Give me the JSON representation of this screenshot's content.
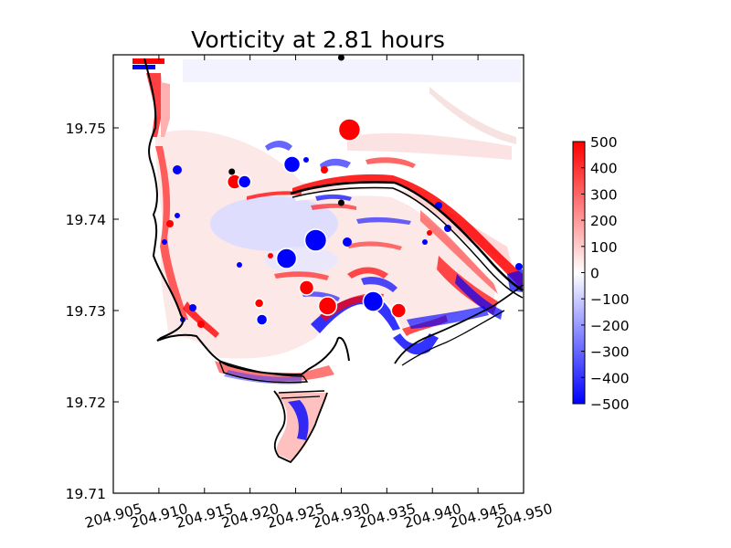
{
  "chart_data": {
    "type": "heatmap",
    "title": "Vorticity at 2.81 hours",
    "xlabel": "",
    "ylabel": "",
    "xlim": [
      204.905,
      204.95
    ],
    "ylim": [
      19.71,
      19.758
    ],
    "x_ticks": [
      "204.905",
      "204.910",
      "204.915",
      "204.920",
      "204.925",
      "204.930",
      "204.935",
      "204.940",
      "204.945",
      "204.950"
    ],
    "x_tick_values": [
      204.905,
      204.91,
      204.915,
      204.92,
      204.925,
      204.93,
      204.935,
      204.94,
      204.945,
      204.95
    ],
    "y_ticks": [
      "19.71",
      "19.72",
      "19.73",
      "19.74",
      "19.75"
    ],
    "y_tick_values": [
      19.71,
      19.72,
      19.73,
      19.74,
      19.75
    ],
    "colorbar": {
      "colormap": "bwr",
      "min": -500,
      "max": 500,
      "ticks": [
        "500",
        "400",
        "300",
        "200",
        "100",
        "0",
        "−100",
        "−200",
        "−300",
        "−400",
        "−500"
      ],
      "tick_values": [
        500,
        400,
        300,
        200,
        100,
        0,
        -100,
        -200,
        -300,
        -400,
        -500
      ]
    },
    "colors": {
      "positive": "#ff0000",
      "negative": "#0000ff",
      "zero": "#ffffff",
      "shoreline": "#000000"
    },
    "markers": [
      {
        "x": 204.93,
        "y": 19.7577
      },
      {
        "x": 204.918,
        "y": 19.7452
      },
      {
        "x": 204.93,
        "y": 19.7418
      }
    ],
    "eddies": [
      {
        "x": 204.9309,
        "y": 19.7498,
        "radius": 0.0012,
        "vorticity": 500
      },
      {
        "x": 204.9183,
        "y": 19.7441,
        "radius": 0.0008,
        "vorticity": 500
      },
      {
        "x": 204.9194,
        "y": 19.7441,
        "radius": 0.0007,
        "vorticity": -500
      },
      {
        "x": 204.9246,
        "y": 19.746,
        "radius": 0.0009,
        "vorticity": -500
      },
      {
        "x": 204.9272,
        "y": 19.7377,
        "radius": 0.0012,
        "vorticity": -500
      },
      {
        "x": 204.924,
        "y": 19.7357,
        "radius": 0.0011,
        "vorticity": -500
      },
      {
        "x": 204.9285,
        "y": 19.7305,
        "radius": 0.001,
        "vorticity": 500
      },
      {
        "x": 204.9335,
        "y": 19.731,
        "radius": 0.0011,
        "vorticity": -500
      },
      {
        "x": 204.9262,
        "y": 19.7325,
        "radius": 0.0008,
        "vorticity": 500
      },
      {
        "x": 204.9213,
        "y": 19.729,
        "radius": 0.0006,
        "vorticity": -500
      },
      {
        "x": 204.9363,
        "y": 19.73,
        "radius": 0.0008,
        "vorticity": 500
      },
      {
        "x": 204.921,
        "y": 19.7308,
        "radius": 0.0005,
        "vorticity": 500
      }
    ]
  }
}
